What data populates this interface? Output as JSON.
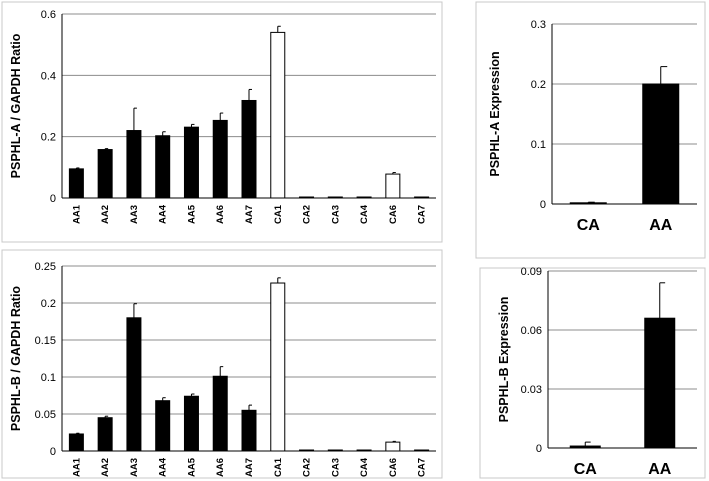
{
  "chart_data": [
    {
      "id": "p1",
      "type": "bar",
      "ylabel": "PSPHL-A / GAPDH Ratio",
      "categories": [
        "AA1",
        "AA2",
        "AA3",
        "AA4",
        "AA5",
        "AA6",
        "AA7",
        "CA1",
        "CA2",
        "CA3",
        "CA4",
        "CA6",
        "CA7"
      ],
      "values": [
        0.095,
        0.158,
        0.22,
        0.203,
        0.231,
        0.253,
        0.318,
        0.54,
        0.003,
        0.003,
        0.003,
        0.078,
        0.003
      ],
      "errors": [
        0.003,
        0.003,
        0.073,
        0.013,
        0.009,
        0.024,
        0.036,
        0.02,
        0.0,
        0.0,
        0.0,
        0.005,
        0.0
      ],
      "fill": [
        "black",
        "black",
        "black",
        "black",
        "black",
        "black",
        "black",
        "white",
        "black",
        "black",
        "black",
        "white",
        "black"
      ],
      "ylim": [
        0,
        0.6
      ],
      "yticks": [
        "0",
        "0.2",
        "0.4",
        "0.6"
      ],
      "grid": true
    },
    {
      "id": "p2",
      "type": "bar",
      "ylabel": "PSPHL-A Expression",
      "categories": [
        "CA",
        "AA"
      ],
      "values": [
        0.002,
        0.2
      ],
      "errors": [
        0.001,
        0.029
      ],
      "fill": [
        "black",
        "black"
      ],
      "ylim": [
        0,
        0.3
      ],
      "yticks": [
        "0",
        "0.1",
        "0.2",
        "0.3"
      ],
      "grid": true
    },
    {
      "id": "p3",
      "type": "bar",
      "ylabel": "PSPHL-B / GAPDH Ratio",
      "categories": [
        "AA1",
        "AA2",
        "AA3",
        "AA4",
        "AA5",
        "AA6",
        "AA7",
        "CA1",
        "CA2",
        "CA3",
        "CA4",
        "CA6",
        "CA7"
      ],
      "values": [
        0.023,
        0.045,
        0.18,
        0.068,
        0.074,
        0.101,
        0.055,
        0.227,
        0.001,
        0.001,
        0.001,
        0.012,
        0.001
      ],
      "errors": [
        0.001,
        0.002,
        0.019,
        0.004,
        0.003,
        0.013,
        0.007,
        0.007,
        0.0,
        0.0,
        0.0,
        0.001,
        0.0
      ],
      "fill": [
        "black",
        "black",
        "black",
        "black",
        "black",
        "black",
        "black",
        "white",
        "black",
        "black",
        "black",
        "white",
        "black"
      ],
      "ylim": [
        0,
        0.25
      ],
      "yticks": [
        "0",
        "0.05",
        "0.1",
        "0.15",
        "0.2",
        "0.25"
      ],
      "grid": true
    },
    {
      "id": "p4",
      "type": "bar",
      "ylabel": "PSPHL-B Expression",
      "categories": [
        "CA",
        "AA"
      ],
      "values": [
        0.001,
        0.066
      ],
      "errors": [
        0.002,
        0.018
      ],
      "fill": [
        "black",
        "black"
      ],
      "ylim": [
        0,
        0.09
      ],
      "yticks": [
        "0",
        "0.03",
        "0.06",
        "0.09"
      ],
      "grid": true
    }
  ]
}
